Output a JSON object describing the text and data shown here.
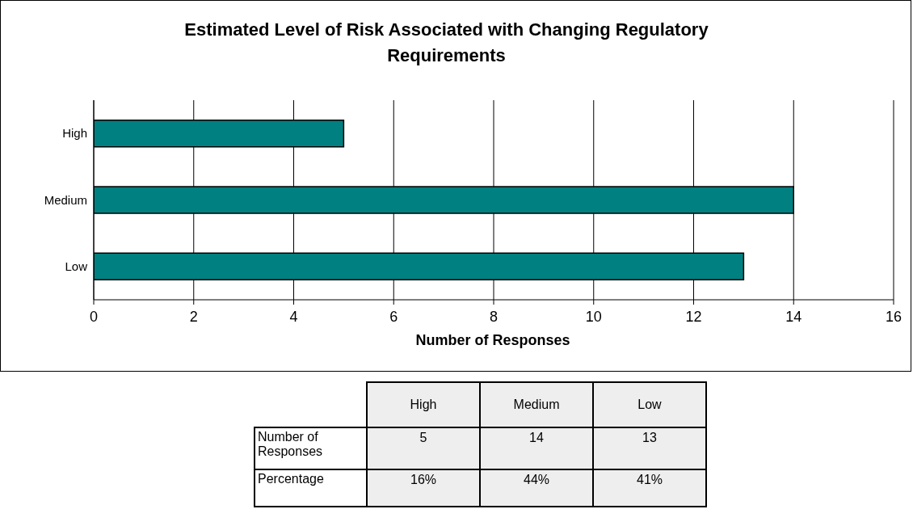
{
  "chart_data": {
    "type": "bar",
    "orientation": "horizontal",
    "title": "Estimated Level of Risk Associated with Changing Regulatory Requirements",
    "xlabel": "Number of Responses",
    "categories": [
      "High",
      "Medium",
      "Low"
    ],
    "values": [
      5,
      14,
      13
    ],
    "color": "#008080",
    "xlim": [
      0,
      16
    ],
    "xticks": [
      0,
      2,
      4,
      6,
      8,
      10,
      12,
      14,
      16
    ],
    "grid": "x",
    "annotations": [
      "5",
      "14",
      "13",
      "Percentage",
      "16%",
      "44%",
      "41%"
    ]
  }
}
